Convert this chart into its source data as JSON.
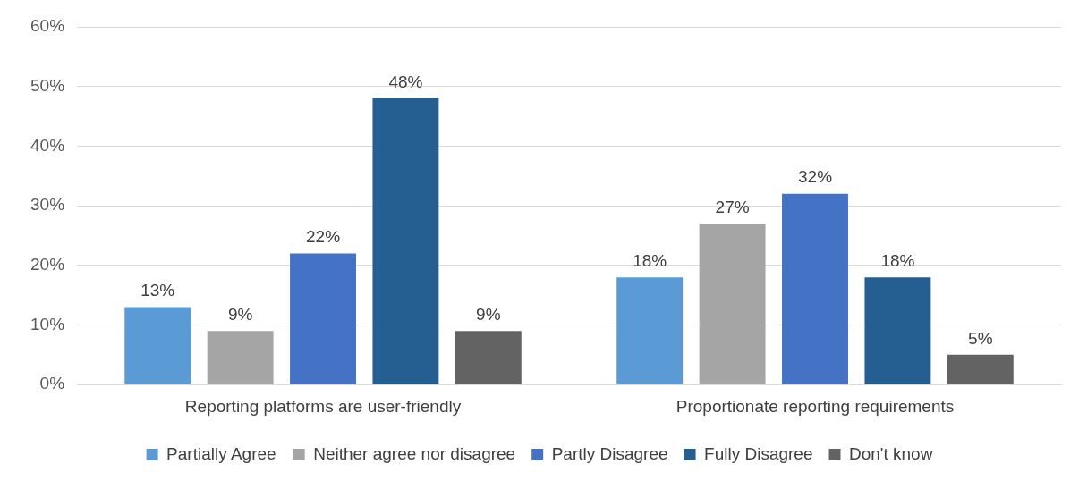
{
  "chart_data": {
    "type": "bar",
    "categories": [
      "Reporting platforms are user-friendly",
      "Proportionate reporting requirements"
    ],
    "series": [
      {
        "name": "Partially Agree",
        "color": "#5b9bd5",
        "values": [
          13,
          18
        ],
        "value_labels": [
          "13%",
          "18%"
        ]
      },
      {
        "name": "Neither agree nor disagree",
        "color": "#a5a5a5",
        "values": [
          9,
          27
        ],
        "value_labels": [
          "9%",
          "27%"
        ]
      },
      {
        "name": "Partly Disagree",
        "color": "#4472c4",
        "values": [
          22,
          32
        ],
        "value_labels": [
          "22%",
          "32%"
        ]
      },
      {
        "name": "Fully Disagree",
        "color": "#255e91",
        "values": [
          48,
          18
        ],
        "value_labels": [
          "48%",
          "18%"
        ]
      },
      {
        "name": "Don't know",
        "color": "#636363",
        "values": [
          9,
          5
        ],
        "value_labels": [
          "9%",
          "5%"
        ]
      }
    ],
    "ylim": [
      0,
      60
    ],
    "yticks": [
      {
        "value": 0,
        "label": "0%"
      },
      {
        "value": 10,
        "label": "10%"
      },
      {
        "value": 20,
        "label": "20%"
      },
      {
        "value": 30,
        "label": "30%"
      },
      {
        "value": 40,
        "label": "40%"
      },
      {
        "value": 50,
        "label": "50%"
      },
      {
        "value": 60,
        "label": "60%"
      }
    ],
    "grid": "y",
    "legend": "bottom"
  }
}
